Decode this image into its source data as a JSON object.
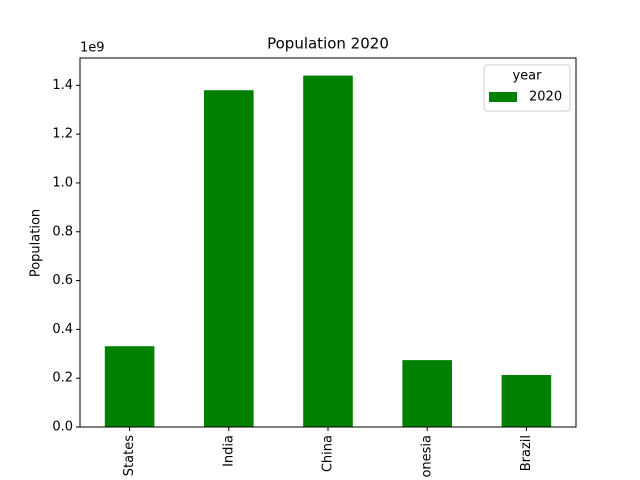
{
  "chart_data": {
    "type": "bar",
    "title": "Population 2020",
    "y_label": "Population",
    "y_offset_label": "1e9",
    "categories": [
      "States",
      "India",
      "China",
      "onesia",
      "Brazil"
    ],
    "series": [
      {
        "name": "2020",
        "color": "#008000",
        "values": [
          0.331,
          1.38,
          1.44,
          0.274,
          0.213
        ]
      }
    ],
    "legend_title": "year",
    "legend": "upper right",
    "ylim": [
      0,
      1.512
    ],
    "yticks": [
      {
        "value": 0,
        "label": "0.0"
      },
      0.2,
      0.4,
      0.6,
      0.8,
      {
        "value": 1,
        "label": "1.0"
      },
      1.2,
      1.4
    ]
  }
}
